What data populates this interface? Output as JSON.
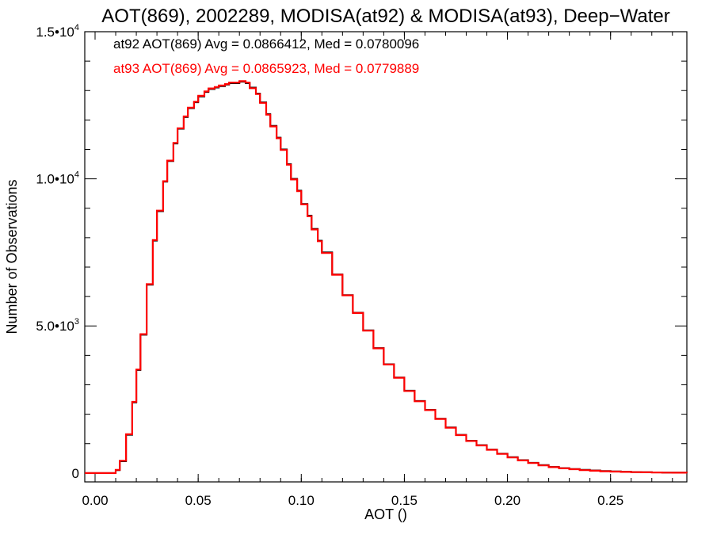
{
  "chart_data": {
    "type": "line",
    "title": "AOT(869), 2002289, MODISA(at92) & MODISA(at93), Deep−Water",
    "xlabel": "AOT ()",
    "ylabel": "Number of Observations",
    "xlim": [
      -0.005,
      0.287
    ],
    "ylim": [
      -300,
      15000
    ],
    "grid": false,
    "x_ticks": [
      0.0,
      0.05,
      0.1,
      0.15,
      0.2,
      0.25
    ],
    "x_tick_labels": [
      "0.00",
      "0.05",
      "0.10",
      "0.15",
      "0.20",
      "0.25"
    ],
    "y_ticks": [
      {
        "value": 0,
        "base": "0",
        "exp": ""
      },
      {
        "value": 5000,
        "base": "5.0•10",
        "exp": "3"
      },
      {
        "value": 10000,
        "base": "1.0•10",
        "exp": "4"
      },
      {
        "value": 15000,
        "base": "1.5•10",
        "exp": "4"
      }
    ],
    "annotations": [
      {
        "text": "at92 AOT(869) Avg = 0.0866412, Med = 0.0780096",
        "color": "#000000"
      },
      {
        "text": "at93 AOT(869) Avg = 0.0865923, Med = 0.0779889",
        "color": "#ff0000"
      }
    ],
    "series": [
      {
        "color": "#000000",
        "x": [
          -0.005,
          0.0,
          0.005,
          0.008,
          0.01,
          0.012,
          0.015,
          0.018,
          0.02,
          0.022,
          0.025,
          0.028,
          0.03,
          0.033,
          0.035,
          0.038,
          0.04,
          0.043,
          0.045,
          0.048,
          0.05,
          0.053,
          0.055,
          0.058,
          0.06,
          0.063,
          0.065,
          0.068,
          0.07,
          0.073,
          0.075,
          0.078,
          0.08,
          0.083,
          0.085,
          0.088,
          0.09,
          0.093,
          0.095,
          0.098,
          0.1,
          0.103,
          0.105,
          0.108,
          0.11,
          0.115,
          0.12,
          0.125,
          0.13,
          0.135,
          0.14,
          0.145,
          0.15,
          0.155,
          0.16,
          0.165,
          0.17,
          0.175,
          0.18,
          0.185,
          0.19,
          0.195,
          0.2,
          0.205,
          0.21,
          0.215,
          0.22,
          0.225,
          0.23,
          0.235,
          0.24,
          0.245,
          0.25,
          0.255,
          0.26,
          0.265,
          0.27,
          0.275,
          0.28,
          0.287
        ],
        "y": [
          0,
          0,
          0,
          0,
          100,
          400,
          1300,
          2400,
          3500,
          4700,
          6400,
          7900,
          8900,
          9900,
          10600,
          11200,
          11700,
          12100,
          12400,
          12600,
          12800,
          12950,
          13050,
          13100,
          13150,
          13200,
          13250,
          13250,
          13300,
          13250,
          13100,
          12900,
          12600,
          12200,
          11800,
          11400,
          11000,
          10500,
          10000,
          9600,
          9150,
          8750,
          8300,
          7900,
          7500,
          6750,
          6050,
          5450,
          4850,
          4250,
          3700,
          3250,
          2800,
          2450,
          2150,
          1850,
          1550,
          1300,
          1100,
          950,
          800,
          660,
          540,
          440,
          350,
          270,
          210,
          170,
          140,
          110,
          90,
          70,
          55,
          45,
          35,
          28,
          22,
          18,
          14,
          10
        ]
      },
      {
        "color": "#ff0000",
        "x": [
          -0.005,
          0.0,
          0.005,
          0.008,
          0.01,
          0.012,
          0.015,
          0.018,
          0.02,
          0.022,
          0.025,
          0.028,
          0.03,
          0.033,
          0.035,
          0.038,
          0.04,
          0.043,
          0.045,
          0.048,
          0.05,
          0.053,
          0.055,
          0.058,
          0.06,
          0.063,
          0.065,
          0.068,
          0.07,
          0.073,
          0.075,
          0.078,
          0.08,
          0.083,
          0.085,
          0.088,
          0.09,
          0.093,
          0.095,
          0.098,
          0.1,
          0.103,
          0.105,
          0.108,
          0.11,
          0.115,
          0.12,
          0.125,
          0.13,
          0.135,
          0.14,
          0.145,
          0.15,
          0.155,
          0.16,
          0.165,
          0.17,
          0.175,
          0.18,
          0.185,
          0.19,
          0.195,
          0.2,
          0.205,
          0.21,
          0.215,
          0.22,
          0.225,
          0.23,
          0.235,
          0.24,
          0.245,
          0.25,
          0.255,
          0.26,
          0.265,
          0.27,
          0.275,
          0.28,
          0.287
        ],
        "y": [
          0,
          0,
          0,
          0,
          110,
          420,
          1320,
          2420,
          3520,
          4720,
          6420,
          7920,
          8920,
          9920,
          10620,
          11220,
          11720,
          12120,
          12420,
          12620,
          12820,
          12970,
          13070,
          13120,
          13170,
          13220,
          13270,
          13270,
          13320,
          13270,
          13080,
          12880,
          12580,
          12180,
          11780,
          11380,
          10980,
          10480,
          9980,
          9580,
          9130,
          8730,
          8280,
          7880,
          7480,
          6740,
          6040,
          5440,
          4840,
          4240,
          3690,
          3240,
          2790,
          2440,
          2140,
          1840,
          1540,
          1290,
          1090,
          940,
          790,
          650,
          530,
          430,
          340,
          260,
          200,
          160,
          130,
          100,
          80,
          60,
          50,
          40,
          30,
          25,
          20,
          15,
          12,
          8
        ]
      }
    ]
  }
}
